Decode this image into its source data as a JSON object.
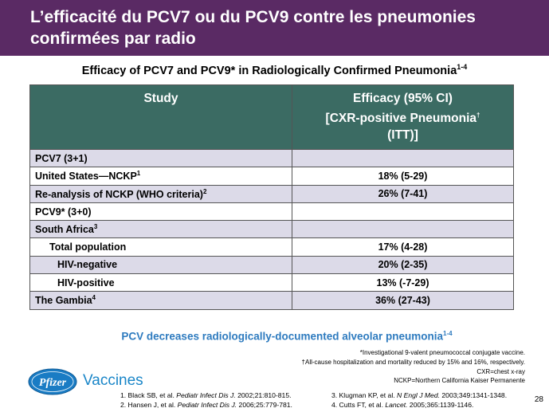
{
  "slide": {
    "title": "L’efficacité du PCV7 ou du PCV9 contre les pneumonies confirmées par radio",
    "subtitle": "Efficacy of PCV7 and PCV9* in Radiologically Confirmed Pneumonia",
    "subtitle_sup": "1-4",
    "page_number": "28"
  },
  "table": {
    "header_study": "Study",
    "header_eff_line1": "Efficacy (95% CI)",
    "header_eff_line2": "[CXR-positive Pneumonia",
    "header_eff_dagger": "†",
    "header_eff_line3": "(ITT)]",
    "rows": [
      {
        "study": "PCV7 (3+1)",
        "sup": "",
        "value": ""
      },
      {
        "study": "United States—NCKP",
        "sup": "1",
        "value": "18% (5-29)"
      },
      {
        "study": "Re-analysis of NCKP (WHO criteria)",
        "sup": "2",
        "value": "26% (7-41)"
      },
      {
        "study": "PCV9* (3+0)",
        "sup": "",
        "value": ""
      },
      {
        "study": "South Africa",
        "sup": "3",
        "value": ""
      },
      {
        "study": "Total population",
        "sup": "",
        "value": "17% (4-28)"
      },
      {
        "study": "HIV-negative",
        "sup": "",
        "value": "20% (2-35)"
      },
      {
        "study": "HIV-positive",
        "sup": "",
        "value": "13% (-7-29)"
      },
      {
        "study": "The Gambia",
        "sup": "4",
        "value": "36% (27-43)"
      }
    ]
  },
  "conclusion": {
    "text": "PCV decreases radiologically-documented  alveolar pneumonia",
    "sup": "1-4"
  },
  "footnotes": [
    "*Investigational 9-valent pneumococcal conjugate vaccine.",
    "†All-cause hospitalization and mortality reduced by 15% and 16%, respectively.",
    "CXR=chest  x-ray",
    "NCKP=Northern  California  Kaiser Permanente"
  ],
  "brand": {
    "logo_text": "Pfizer",
    "name": "Vaccines"
  },
  "references": {
    "r1": {
      "pre": "1. Black SB, et al. ",
      "journal": "Pediatr Infect Dis J.",
      "post": " 2002;21:810-815."
    },
    "r2": {
      "pre": "2. Hansen J, et al. ",
      "journal": "Pediatr Infect Dis J.",
      "post": " 2006;25:779-781."
    },
    "r3": {
      "pre": "3. Klugman KP, et al. ",
      "journal": "N Engl J Med.",
      "post": " 2003;349:1341-1348."
    },
    "r4": {
      "pre": "4. Cutts FT, et al. ",
      "journal": "Lancet.",
      "post": " 2005;365:1139-1146."
    }
  },
  "colors": {
    "header_bg": "#5a2a64",
    "table_header": "#3b6b63",
    "row_shade": "#dcdae8",
    "accent_blue": "#2e7bbf"
  }
}
